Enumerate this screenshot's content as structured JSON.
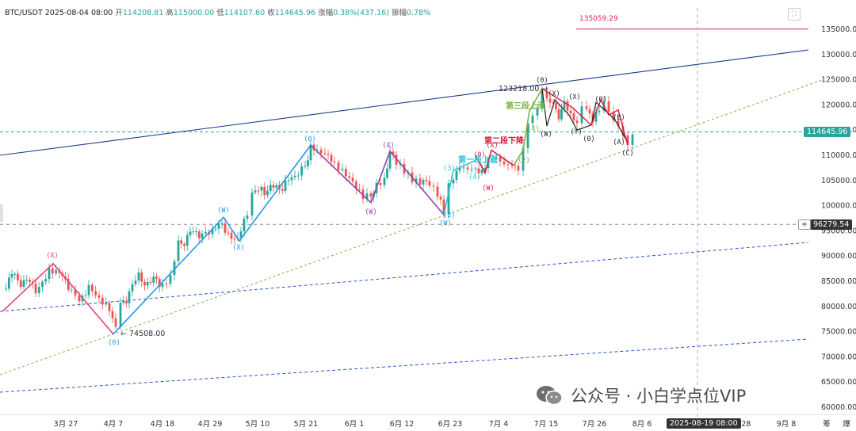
{
  "header": {
    "symbol": "BTC/USDT",
    "datetime": "2025-08-04 08:00",
    "open_label": "开",
    "open": "114208.81",
    "high_label": "高",
    "high": "115000.00",
    "low_label": "低",
    "low": "114107.60",
    "close_label": "收",
    "close": "114645.96",
    "change_label": "涨幅",
    "change": "0.38%(437.16)",
    "amp_label": "振幅",
    "amplitude": "0.78%"
  },
  "colors": {
    "up": "#26a69a",
    "down": "#ef5350",
    "blue_wave": "#2196f3",
    "purple_wave": "#8e44ad",
    "pink_wave": "#e0457b",
    "red_wave": "#d81b3c",
    "green_wave": "#7cb342",
    "teal_wave": "#26c6da",
    "channel": "#1a3a8c",
    "target": "#e91e63"
  },
  "price_tags": {
    "current": "114645.96",
    "crosshair": "96279.54",
    "crosshair_date": "2025-08-19 08:00",
    "target": "135059.29"
  },
  "annotations": {
    "low_price": "74508.00",
    "high_price": "123218.00",
    "seg1": "第一段上涨",
    "seg2": "第二段下降",
    "seg3": "第三段上涨"
  },
  "watermark": {
    "text": "公众号 · 小白学点位VIP"
  },
  "chart_data": {
    "type": "candlestick",
    "y_ticks": [
      135000,
      130000,
      125000,
      120000,
      115000,
      110000,
      105000,
      100000,
      95000,
      90000,
      85000,
      80000,
      75000,
      70000,
      65000,
      60000
    ],
    "x_ticks": [
      "3月 27",
      "4月 7",
      "4月 18",
      "4月 29",
      "5月 10",
      "5月 21",
      "6月 1",
      "6月 12",
      "6月 23",
      "7月 4",
      "7月 15",
      "7月 26",
      "8月 6",
      "8月 28",
      "9月 8"
    ],
    "axis_corner": [
      "筹",
      "爆"
    ],
    "ohlc_anchor_prices": [
      {
        "date": "3月 27",
        "price": 86500
      },
      {
        "date": "4月 7",
        "price": 74508
      },
      {
        "date": "4月 29",
        "price": 95000
      },
      {
        "date": "5月 21",
        "price": 111800
      },
      {
        "date": "6月 23",
        "price": 98200
      },
      {
        "date": "7月 14",
        "price": 123218
      },
      {
        "date": "8月 4",
        "price": 114645.96
      }
    ],
    "wave_labels": [
      "(X)",
      "(0)",
      "(W)",
      "(X)",
      "(0)",
      "(X)",
      "(W)",
      "(W)",
      "(2)",
      "(3)",
      "(4)",
      "(0)",
      "(X)",
      "(W)",
      "(2)",
      "(4)",
      "(0)",
      "(X)",
      "(W)",
      "(Y)",
      "(0)",
      "(X)",
      "(A)",
      "(B)",
      "(C)",
      "(0)"
    ]
  }
}
